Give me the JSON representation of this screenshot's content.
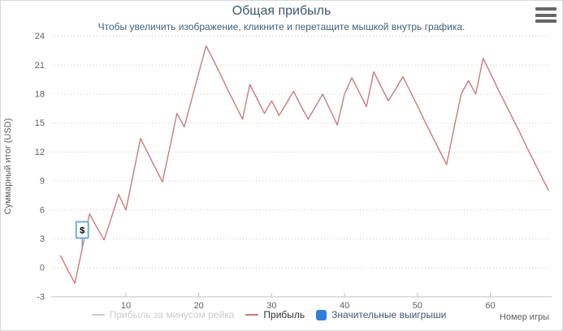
{
  "header": {
    "title": "Общая прибыль",
    "subtitle": "Чтобы увеличить изображение, кликните и перетащите мышкой внутрь графика."
  },
  "colors": {
    "title_text": "#3E576F",
    "subtitle_text": "#41627E",
    "profit_line": "#C97B7D",
    "disabled_legend": "#CCCCCC",
    "wins_marker_blue": "#2F7ED8",
    "flag_border": "#6BA3D6",
    "flag_fill": "#F7FBFF",
    "axis_label": "#606060",
    "axis_line": "#C0C0C0",
    "gridline": "#CCCCCC",
    "legend_text": "#333333",
    "wins_legend_text": "#3E576F",
    "menu_icon": "#666666"
  },
  "legend": {
    "items": [
      {
        "label": "Прибыль за минусом рейка",
        "marker": "line",
        "disabled": true
      },
      {
        "label": "Прибыль",
        "marker": "line",
        "disabled": false
      },
      {
        "label": "Значительные выигрыши",
        "marker": "square",
        "disabled": false
      }
    ]
  },
  "x_axis": {
    "title": "Номер игры"
  },
  "y_axis": {
    "title": "Суммарный итог (USD)"
  },
  "chart_data": {
    "type": "line",
    "title": "Общая прибыль",
    "subtitle": "Чтобы увеличить изображение, кликните и перетащите мышкой внутрь графика.",
    "xlabel": "Номер игры",
    "ylabel": "Суммарный итог (USD)",
    "xlim": [
      0,
      69
    ],
    "ylim": [
      -3,
      24
    ],
    "x_ticks": [
      10,
      20,
      30,
      40,
      50,
      60
    ],
    "y_ticks": [
      -3,
      0,
      3,
      6,
      9,
      12,
      15,
      18,
      21,
      24
    ],
    "grid": "horizontal-dotted",
    "legend_position": "bottom-center",
    "series": [
      {
        "name": "Прибыль за минусом рейка",
        "type": "line",
        "visible": false,
        "x": [],
        "values": []
      },
      {
        "name": "Прибыль",
        "type": "line",
        "visible": true,
        "x_start": 1,
        "values": [
          1.3,
          -0.2,
          -1.6,
          2.0,
          5.6,
          4.2,
          2.9,
          5.2,
          7.6,
          6.0,
          9.7,
          13.4,
          11.9,
          10.4,
          8.9,
          12.4,
          16.0,
          14.6,
          17.4,
          20.2,
          23.0,
          21.5,
          20.0,
          18.4,
          16.9,
          15.4,
          19.0,
          17.5,
          16.0,
          17.3,
          15.8,
          17.0,
          18.3,
          16.8,
          15.4,
          16.7,
          18.0,
          16.4,
          14.8,
          18.0,
          19.7,
          18.2,
          16.7,
          20.3,
          18.8,
          17.3,
          18.5,
          19.8,
          18.3,
          16.8,
          15.2,
          13.7,
          12.2,
          10.7,
          14.4,
          18.0,
          19.4,
          18.0,
          21.7,
          20.2,
          18.6,
          17.1,
          15.6,
          14.1,
          12.5,
          11.0,
          9.5,
          8.0
        ]
      },
      {
        "name": "Значительные выигрыши",
        "type": "flags",
        "visible": true,
        "points": [
          {
            "x": 4,
            "title": "$"
          }
        ]
      }
    ]
  }
}
